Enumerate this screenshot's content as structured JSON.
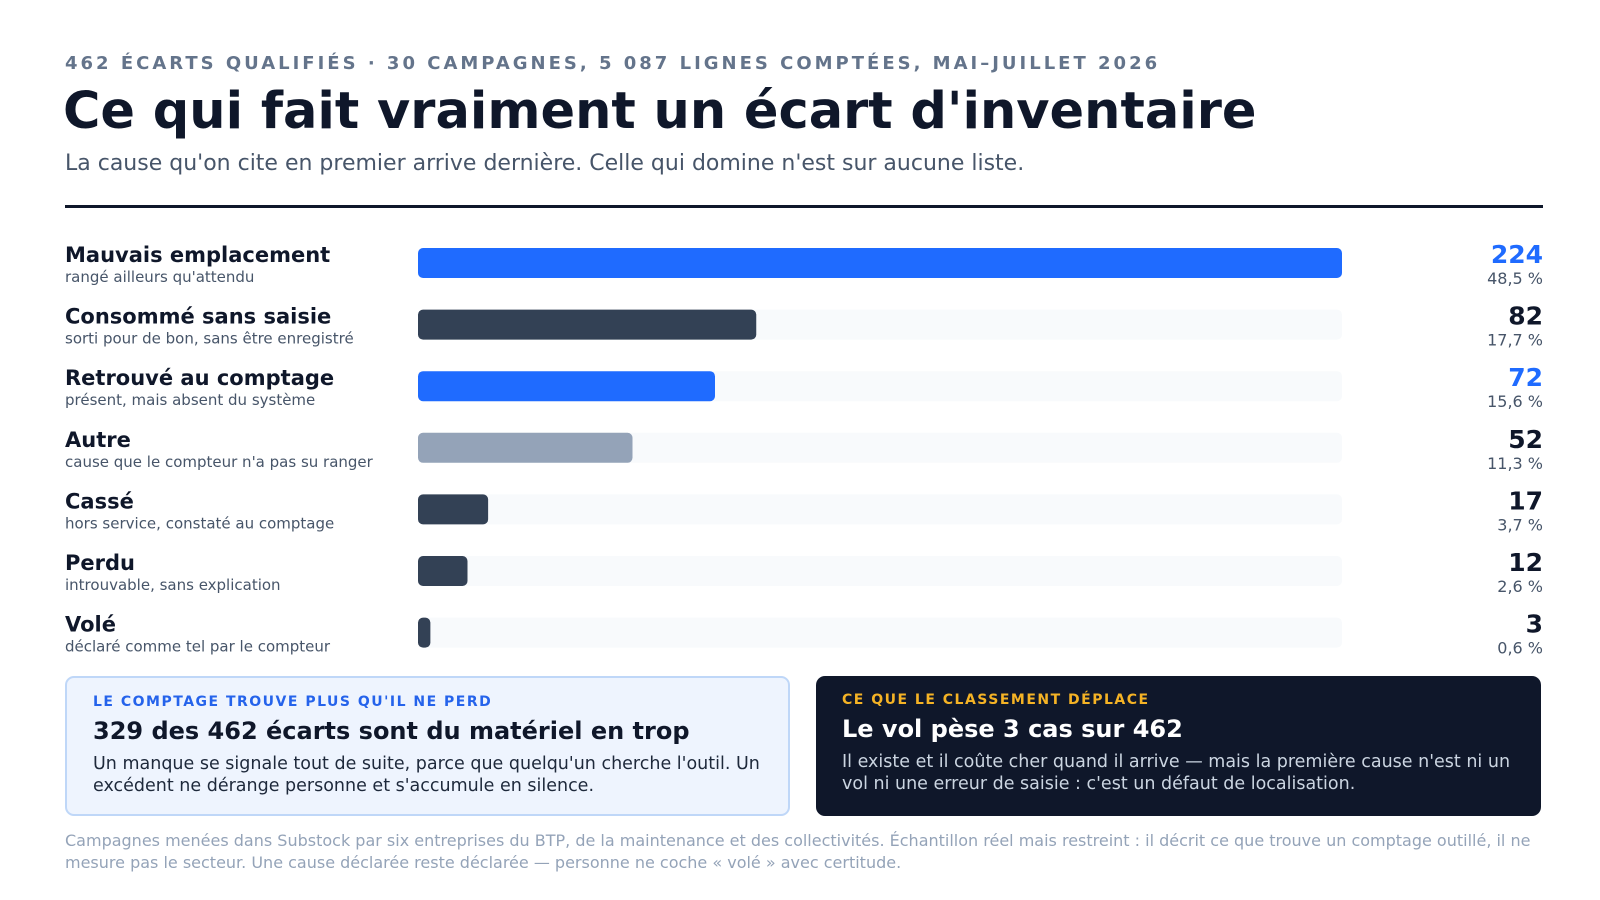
{
  "header": {
    "eyebrow": "462 ÉCARTS QUALIFIÉS · 30 CAMPAGNES, 5 087 LIGNES COMPTÉES, MAI–JUILLET 2026",
    "title": "Ce qui fait vraiment un écart d'inventaire",
    "subtitle": "La cause qu'on cite en premier arrive dernière. Celle qui domine n'est sur aucune liste."
  },
  "colors": {
    "blue": "#1f6bff",
    "dark": "#334155",
    "gray": "#94a3b8",
    "track": "#f8fafc",
    "text_dark": "#0f172a",
    "text_muted": "#475569"
  },
  "chart_data": {
    "type": "bar",
    "orientation": "horizontal",
    "xlim": [
      0,
      224
    ],
    "categories": [
      "Mauvais emplacement",
      "Consommé sans saisie",
      "Retrouvé au comptage",
      "Autre",
      "Cassé",
      "Perdu",
      "Volé"
    ],
    "descriptions": [
      "rangé ailleurs qu'attendu",
      "sorti pour de bon, sans être enregistré",
      "présent, mais absent du système",
      "cause que le compteur n'a pas su ranger",
      "hors service, constaté au comptage",
      "introuvable, sans explication",
      "déclaré comme tel par le compteur"
    ],
    "values": [
      224,
      82,
      72,
      52,
      17,
      12,
      3
    ],
    "percent_labels": [
      "48,5 %",
      "17,7 %",
      "15,6 %",
      "11,3 %",
      "3,7 %",
      "2,6 %",
      "0,6 %"
    ],
    "bar_colors": [
      "#1f6bff",
      "#334155",
      "#1f6bff",
      "#94a3b8",
      "#334155",
      "#334155",
      "#334155"
    ],
    "value_colors": [
      "#1f6bff",
      "#0f172a",
      "#1f6bff",
      "#0f172a",
      "#0f172a",
      "#0f172a",
      "#0f172a"
    ]
  },
  "cards": {
    "left": {
      "kicker": "LE COMPTAGE TROUVE PLUS QU'IL NE PERD",
      "heading": "329 des 462 écarts sont du matériel en trop",
      "body": "Un manque se signale tout de suite, parce que quelqu'un cherche l'outil. Un excédent ne dérange personne et s'accumule en silence."
    },
    "right": {
      "kicker": "CE QUE LE CLASSEMENT DÉPLACE",
      "heading": "Le vol pèse 3 cas sur 462",
      "body": "Il existe et il coûte cher quand il arrive — mais la première cause n'est ni un vol ni une erreur de saisie : c'est un défaut de localisation."
    }
  },
  "footnote": "Campagnes menées dans Substock par six entreprises du BTP, de la maintenance et des collectivités. Échantillon réel mais restreint : il décrit ce que trouve un comptage outillé, il ne mesure pas le secteur. Une cause déclarée reste déclarée — personne ne coche « volé » avec certitude."
}
